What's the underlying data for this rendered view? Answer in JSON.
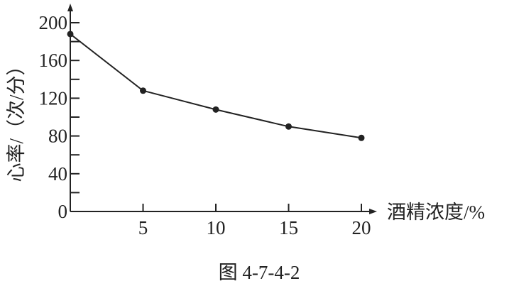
{
  "chart_data": {
    "type": "line",
    "title": "",
    "caption": "图 4-7-4-2",
    "xlabel": "酒精浓度/%",
    "ylabel": "心率/（次/分）",
    "x": [
      0,
      5,
      10,
      15,
      20
    ],
    "y": [
      188,
      128,
      108,
      90,
      78
    ],
    "xticks": [
      5,
      10,
      15,
      20
    ],
    "yticks": [
      0,
      40,
      80,
      120,
      160,
      200
    ],
    "yminor_step": 20,
    "xlim": [
      0,
      20
    ],
    "ylim": [
      0,
      200
    ],
    "grid": false,
    "line_color": "#222222",
    "marker": "filled-circle"
  }
}
